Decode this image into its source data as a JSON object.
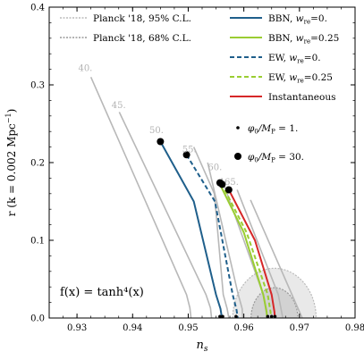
{
  "chart_data": {
    "type": "line",
    "xlabel": "n",
    "xlabel_sub": "s",
    "ylabel": "r (k = 0.002 Mpc",
    "ylabel_sup": "−1",
    "ylabel_end": ")",
    "xlim": [
      0.925,
      0.98
    ],
    "ylim": [
      0.0,
      0.4
    ],
    "x_ticks": [
      0.93,
      0.94,
      0.95,
      0.96,
      0.97,
      0.98
    ],
    "x_tick_labels": [
      "0.93",
      "0.94",
      "0.95",
      "0.96",
      "0.97",
      "0.98"
    ],
    "y_ticks": [
      0.0,
      0.1,
      0.2,
      0.3,
      0.4
    ],
    "y_tick_labels": [
      "0.0",
      "0.1",
      "0.2",
      "0.3",
      "0.4"
    ],
    "annotation": "f(x) = tanh⁴(x)",
    "efold_labels": [
      {
        "text": "40.",
        "x": 0.9315,
        "y": 0.318
      },
      {
        "text": "45.",
        "x": 0.9375,
        "y": 0.27
      },
      {
        "text": "50.",
        "x": 0.9443,
        "y": 0.238
      },
      {
        "text": "55.",
        "x": 0.9502,
        "y": 0.213
      },
      {
        "text": "60.",
        "x": 0.9548,
        "y": 0.19
      },
      {
        "text": "65.",
        "x": 0.9578,
        "y": 0.171
      }
    ],
    "planck_contours": [
      {
        "name": "Planck '18, 95% C.L.",
        "center": [
          0.9655,
          0.0
        ],
        "rx": 0.0075,
        "ry": 0.064,
        "color": "#bbbbbb",
        "fill": "#e9e9e9"
      },
      {
        "name": "Planck '18, 68% C.L.",
        "center": [
          0.9655,
          0.0
        ],
        "rx": 0.0042,
        "ry": 0.039,
        "color": "#999999",
        "fill": "#d2d2d2"
      }
    ],
    "gray_lines": [
      {
        "x": [
          0.9325,
          0.9497,
          0.9503,
          0.9505
        ],
        "y": [
          0.31,
          0.03,
          0.013,
          0.0
        ]
      },
      {
        "x": [
          0.9376,
          0.9532,
          0.954,
          0.9542
        ],
        "y": [
          0.265,
          0.03,
          0.013,
          0.0
        ]
      },
      {
        "x": [
          0.951,
          0.9547,
          0.9563,
          0.957,
          0.9573
        ],
        "y": [
          0.22,
          0.16,
          0.03,
          0.012,
          0.0
        ]
      },
      {
        "x": [
          0.9535,
          0.959,
          0.9597,
          0.9598
        ],
        "y": [
          0.2,
          0.03,
          0.012,
          0.0
        ]
      },
      {
        "x": [
          0.956,
          0.9635,
          0.9642
        ],
        "y": [
          0.18,
          0.03,
          0.0
        ]
      },
      {
        "x": [
          0.9588,
          0.9662,
          0.967
        ],
        "y": [
          0.165,
          0.03,
          0.0
        ]
      },
      {
        "x": [
          0.9612,
          0.9705
        ],
        "y": [
          0.152,
          0.0
        ]
      }
    ],
    "series": [
      {
        "name": "BBN, ",
        "w_label": "w",
        "w_sub": "re",
        "w_value": "=0.",
        "color": "#1f5f8b",
        "dash": "",
        "x": [
          0.945,
          0.951,
          0.955,
          0.9558,
          0.956,
          0.9561
        ],
        "y": [
          0.227,
          0.15,
          0.03,
          0.012,
          0.003,
          0.0
        ]
      },
      {
        "name": "BBN, ",
        "w_label": "w",
        "w_sub": "re",
        "w_value": "=0.25",
        "color": "#9acd32",
        "dash": "",
        "x": [
          0.9557,
          0.96,
          0.9635,
          0.9641,
          0.9642
        ],
        "y": [
          0.172,
          0.11,
          0.03,
          0.008,
          0.0
        ]
      },
      {
        "name": "EW, ",
        "w_label": "w",
        "w_sub": "re",
        "w_value": "=0.",
        "color": "#1f5f8b",
        "dash": "5,3",
        "x": [
          0.9497,
          0.9548,
          0.958,
          0.9587,
          0.9589
        ],
        "y": [
          0.21,
          0.15,
          0.03,
          0.01,
          0.0
        ]
      },
      {
        "name": "EW, ",
        "w_label": "w",
        "w_sub": "re",
        "w_value": "=0.25",
        "color": "#9acd32",
        "dash": "5,3",
        "x": [
          0.956,
          0.9605,
          0.9643,
          0.9648,
          0.9649
        ],
        "y": [
          0.173,
          0.11,
          0.03,
          0.008,
          0.0
        ]
      },
      {
        "name": "Instantaneous",
        "w_label": "",
        "w_sub": "",
        "w_value": "",
        "color": "#d62728",
        "dash": "",
        "x": [
          0.9573,
          0.962,
          0.965,
          0.9655,
          0.9656
        ],
        "y": [
          0.165,
          0.1,
          0.03,
          0.008,
          0.0
        ]
      }
    ],
    "markers": [
      {
        "label": "φ₀/M_P = 1.",
        "lhs": "φ",
        "lhs_sub": "0",
        "mid": "/M",
        "mid_sub": "P",
        "rhs": " = 1.",
        "size": "small",
        "points": [
          {
            "x": 0.9557,
            "y": 0.002
          },
          {
            "x": 0.9562,
            "y": 0.002
          },
          {
            "x": 0.9586,
            "y": 0.002
          },
          {
            "x": 0.9643,
            "y": 0.002
          },
          {
            "x": 0.965,
            "y": 0.002
          },
          {
            "x": 0.9656,
            "y": 0.002
          }
        ]
      },
      {
        "label": "φ₀/M_P = 30.",
        "lhs": "φ",
        "lhs_sub": "0",
        "mid": "/M",
        "mid_sub": "P",
        "rhs": " = 30.",
        "size": "large",
        "points": [
          {
            "x": 0.945,
            "y": 0.227
          },
          {
            "x": 0.9497,
            "y": 0.21
          },
          {
            "x": 0.9557,
            "y": 0.174
          },
          {
            "x": 0.9561,
            "y": 0.172
          },
          {
            "x": 0.9573,
            "y": 0.165
          }
        ]
      }
    ],
    "legend_position": "top"
  }
}
